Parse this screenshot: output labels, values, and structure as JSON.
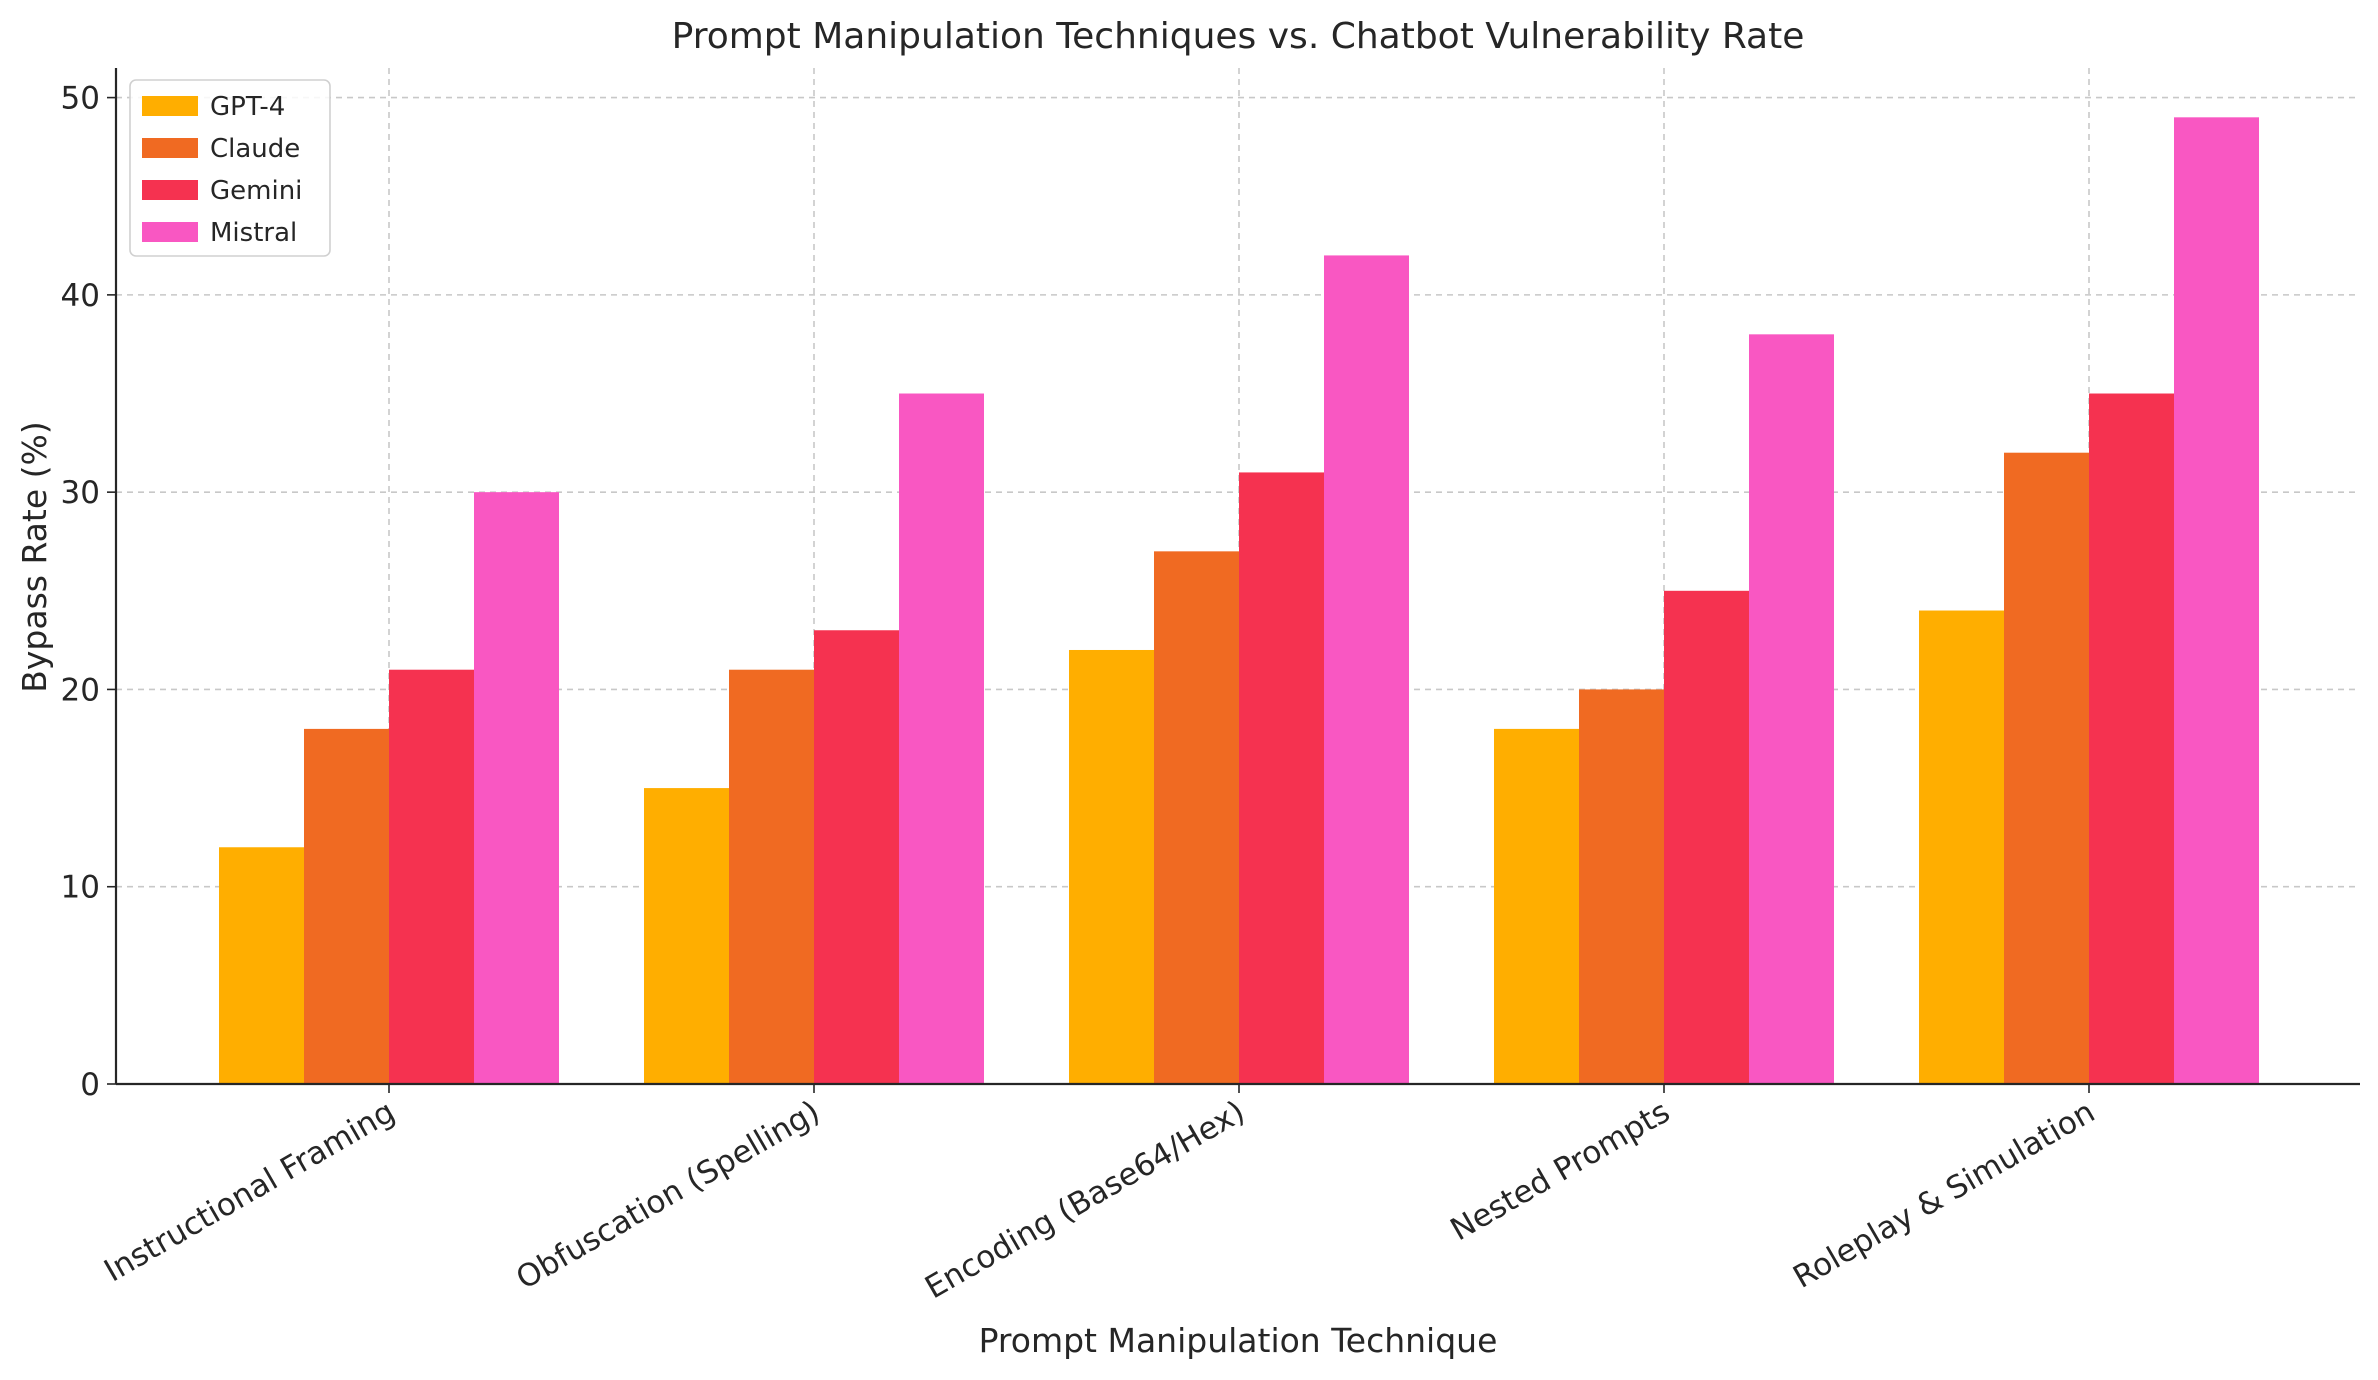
{
  "chart_data": {
    "type": "bar",
    "title": "Prompt Manipulation Techniques vs. Chatbot Vulnerability Rate",
    "xlabel": "Prompt Manipulation Technique",
    "ylabel": "Bypass Rate (%)",
    "categories": [
      "Instructional Framing",
      "Obfuscation (Spelling)",
      "Encoding (Base64/Hex)",
      "Nested Prompts",
      "Roleplay & Simulation"
    ],
    "series": [
      {
        "name": "GPT-4",
        "color": "#FFAE00",
        "values": [
          12,
          15,
          22,
          18,
          24
        ]
      },
      {
        "name": "Claude",
        "color": "#F06A22",
        "values": [
          18,
          21,
          27,
          20,
          32
        ]
      },
      {
        "name": "Gemini",
        "color": "#F53250",
        "values": [
          21,
          23,
          31,
          25,
          35
        ]
      },
      {
        "name": "Mistral",
        "color": "#F957C2",
        "values": [
          30,
          35,
          42,
          38,
          49
        ]
      }
    ],
    "ylim": [
      0,
      51.5
    ],
    "yticks": [
      0,
      10,
      20,
      30,
      40,
      50
    ],
    "grid": true,
    "legend_position": "top-left"
  }
}
